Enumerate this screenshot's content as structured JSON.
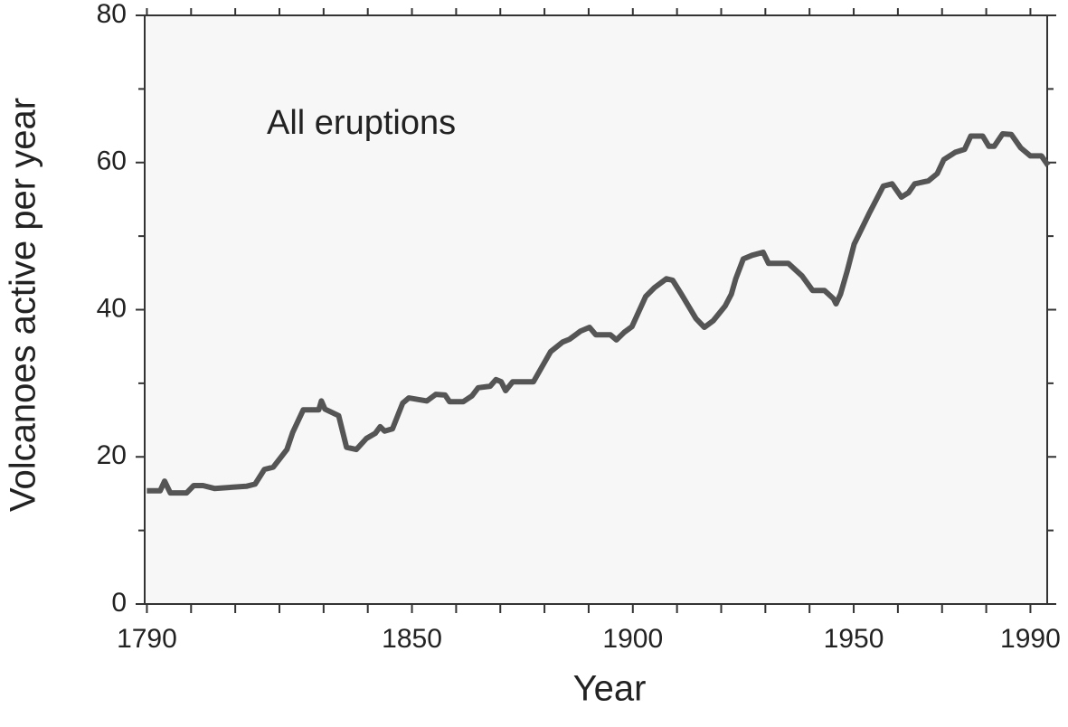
{
  "chart_data": {
    "type": "line",
    "annotation": "All eruptions",
    "x_label": "Year",
    "y_label": "Volcanoes active per year",
    "x": [
      1790,
      1793,
      1794,
      1795.3,
      1799,
      1800.6,
      1802.7,
      1805.3,
      1812.5,
      1814.5,
      1816.6,
      1818.6,
      1821.7,
      1823,
      1825.4,
      1828.9,
      1829.5,
      1830.3,
      1833.4,
      1835.2,
      1837.4,
      1839.7,
      1841.7,
      1842.8,
      1843.8,
      1845.6,
      1846.9,
      1847.9,
      1849.3,
      1853.4,
      1855.4,
      1857.5,
      1858.5,
      1861.6,
      1863.6,
      1865,
      1867.7,
      1869,
      1870.2,
      1871.2,
      1872.8,
      1877.5,
      1879.6,
      1881.4,
      1884.1,
      1885.7,
      1888.2,
      1890.2,
      1891.6,
      1894.9,
      1896.3,
      1898,
      1899.8,
      1901,
      1902.9,
      1904.9,
      1907.6,
      1909,
      1911,
      1914.3,
      1916.2,
      1918.2,
      1920.9,
      1922.3,
      1923.3,
      1925,
      1927,
      1929.5,
      1930.7,
      1935.2,
      1938.3,
      1940.7,
      1943.4,
      1945.4,
      1946,
      1947,
      1948.5,
      1950.1,
      1953.6,
      1956.7,
      1958.7,
      1960.8,
      1962.4,
      1963.8,
      1966.9,
      1968.9,
      1970.4,
      1973,
      1975.1,
      1976.5,
      1979.2,
      1980.6,
      1981.8,
      1983.7,
      1985.7,
      1987.8,
      1990,
      1992.5,
      1994
    ],
    "series": [
      {
        "color": "#555555",
        "values": [
          15.4,
          15.4,
          16.7,
          15.1,
          15.1,
          16.1,
          16.1,
          15.7,
          16,
          16.3,
          18.3,
          18.6,
          21,
          23.3,
          26.4,
          26.4,
          27.6,
          26.5,
          25.6,
          21.3,
          21,
          22.5,
          23.2,
          24.1,
          23.5,
          23.8,
          25.8,
          27.3,
          28,
          27.6,
          28.5,
          28.4,
          27.5,
          27.5,
          28.3,
          29.4,
          29.6,
          30.5,
          30.2,
          29,
          30.2,
          30.2,
          32.4,
          34.3,
          35.6,
          36,
          37.1,
          37.6,
          36.6,
          36.6,
          35.9,
          36.9,
          37.7,
          39.3,
          41.8,
          43,
          44.2,
          44,
          42.1,
          38.8,
          37.6,
          38.5,
          40.5,
          42.1,
          44.2,
          46.9,
          47.4,
          47.8,
          46.3,
          46.3,
          44.6,
          42.6,
          42.6,
          41.5,
          40.8,
          42.1,
          45.2,
          48.9,
          53.2,
          56.8,
          57.1,
          55.3,
          55.9,
          57.1,
          57.5,
          58.5,
          60.4,
          61.4,
          61.8,
          63.6,
          63.6,
          62.2,
          62.2,
          63.9,
          63.8,
          62,
          60.9,
          60.9,
          59.6
        ]
      }
    ],
    "xlim": [
      1789.5,
      1993.8
    ],
    "xticks": [
      1790,
      1850,
      1900,
      1950,
      1990
    ],
    "xminorticks": [
      1800,
      1810,
      1820,
      1830,
      1840,
      1860,
      1870,
      1880,
      1890,
      1910,
      1920,
      1930,
      1940,
      1960,
      1970,
      1980
    ],
    "ylim": [
      0,
      80
    ],
    "yticks": [
      0,
      20,
      40,
      60,
      80
    ],
    "yminorticks": [
      10,
      30,
      50,
      70
    ],
    "plot_background": "#f7f7f7"
  }
}
